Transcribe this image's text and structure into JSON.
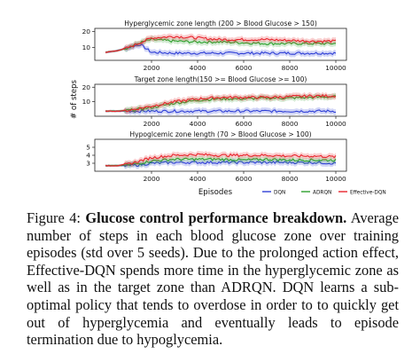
{
  "figure": {
    "ylabel": "# of steps",
    "xlabel": "Episodes",
    "legend": [
      "DQN",
      "ADRQN",
      "Effective-DQN"
    ],
    "colors": {
      "DQN": "#2f3fd6",
      "ADRQN": "#2ca02c",
      "Effective-DQN": "#e8232b"
    }
  },
  "chart_data": [
    {
      "type": "line",
      "title": "Hyperglycemic zone length (200 > Blood Glucose > 150)",
      "xticks": [
        "2000",
        "4000",
        "6000",
        "8000",
        "10000"
      ],
      "yticks": [
        "10",
        "20"
      ],
      "xlim": [
        0,
        10000
      ],
      "ylim": [
        2,
        22
      ],
      "x": [
        0,
        500,
        1000,
        1500,
        2000,
        3000,
        4000,
        5000,
        6000,
        7000,
        8000,
        9000,
        10000
      ],
      "series": [
        {
          "name": "DQN",
          "values": [
            7,
            8,
            10,
            12,
            7,
            6.5,
            6.5,
            6.5,
            6.5,
            6.5,
            6.5,
            6.5,
            6.5
          ]
        },
        {
          "name": "ADRQN",
          "values": [
            7,
            8,
            10,
            13,
            15,
            14,
            13.5,
            13.5,
            13,
            12.5,
            12.5,
            12.5,
            12.5
          ]
        },
        {
          "name": "Effective-DQN",
          "values": [
            7,
            8,
            10,
            13,
            16,
            17,
            16,
            15,
            15,
            15,
            14.5,
            14,
            14
          ]
        }
      ]
    },
    {
      "type": "line",
      "title": "Target zone length(150 >= Blood Glucose >= 100)",
      "xticks": [
        "2000",
        "4000",
        "6000",
        "8000",
        "10000"
      ],
      "yticks": [
        "10",
        "20"
      ],
      "xlim": [
        0,
        10000
      ],
      "ylim": [
        0,
        22
      ],
      "x": [
        0,
        500,
        1000,
        1500,
        2000,
        3000,
        4000,
        5000,
        6000,
        7000,
        8000,
        9000,
        10000
      ],
      "series": [
        {
          "name": "DQN",
          "values": [
            3.5,
            3.5,
            3.5,
            3.5,
            3.5,
            3.5,
            3.5,
            3.5,
            3.5,
            3.5,
            3.5,
            3.5,
            3.5
          ]
        },
        {
          "name": "ADRQN",
          "values": [
            3.5,
            3.5,
            4,
            5,
            6,
            9,
            11,
            12,
            12,
            12.5,
            12.5,
            13,
            13.5
          ]
        },
        {
          "name": "Effective-DQN",
          "values": [
            3.5,
            3.5,
            4,
            5.5,
            7,
            10,
            12,
            13,
            13,
            13,
            13.5,
            14,
            14
          ]
        }
      ]
    },
    {
      "type": "line",
      "title": "Hypoglcemic zone length (70 > Blood Glucose > 100)",
      "xticks": [
        "2000",
        "4000",
        "6000",
        "8000",
        "10000"
      ],
      "yticks": [
        "3",
        "4",
        "5"
      ],
      "xlim": [
        0,
        10000
      ],
      "ylim": [
        2,
        6
      ],
      "x": [
        0,
        500,
        1000,
        1500,
        2000,
        3000,
        4000,
        5000,
        6000,
        7000,
        8000,
        9000,
        10000
      ],
      "series": [
        {
          "name": "DQN",
          "values": [
            2.7,
            2.7,
            2.7,
            2.8,
            3.0,
            3.1,
            3.1,
            3.1,
            3.1,
            3.1,
            3.1,
            3.1,
            3.0
          ]
        },
        {
          "name": "ADRQN",
          "values": [
            2.7,
            2.7,
            2.8,
            3.0,
            3.3,
            3.5,
            3.5,
            3.5,
            3.4,
            3.5,
            3.4,
            3.4,
            3.4
          ]
        },
        {
          "name": "Effective-DQN",
          "values": [
            2.7,
            2.7,
            2.9,
            3.3,
            3.7,
            4.0,
            4.1,
            4.0,
            4.0,
            4.0,
            3.9,
            3.9,
            3.8
          ]
        }
      ]
    }
  ],
  "caption": {
    "label": "Figure 4:",
    "bold": "Glucose control performance breakdown.",
    "text": "Average number of steps in each blood glucose zone over training episodes (std over 5 seeds). Due to the prolonged action effect, Effective-DQN spends more time in the hyperglycemic zone as well as in the target zone than ADRQN. DQN learns a sub-optimal policy that tends to overdose in order to to quickly get out of hyperglycemia and eventually leads to episode termination due to hypoglycemia."
  }
}
